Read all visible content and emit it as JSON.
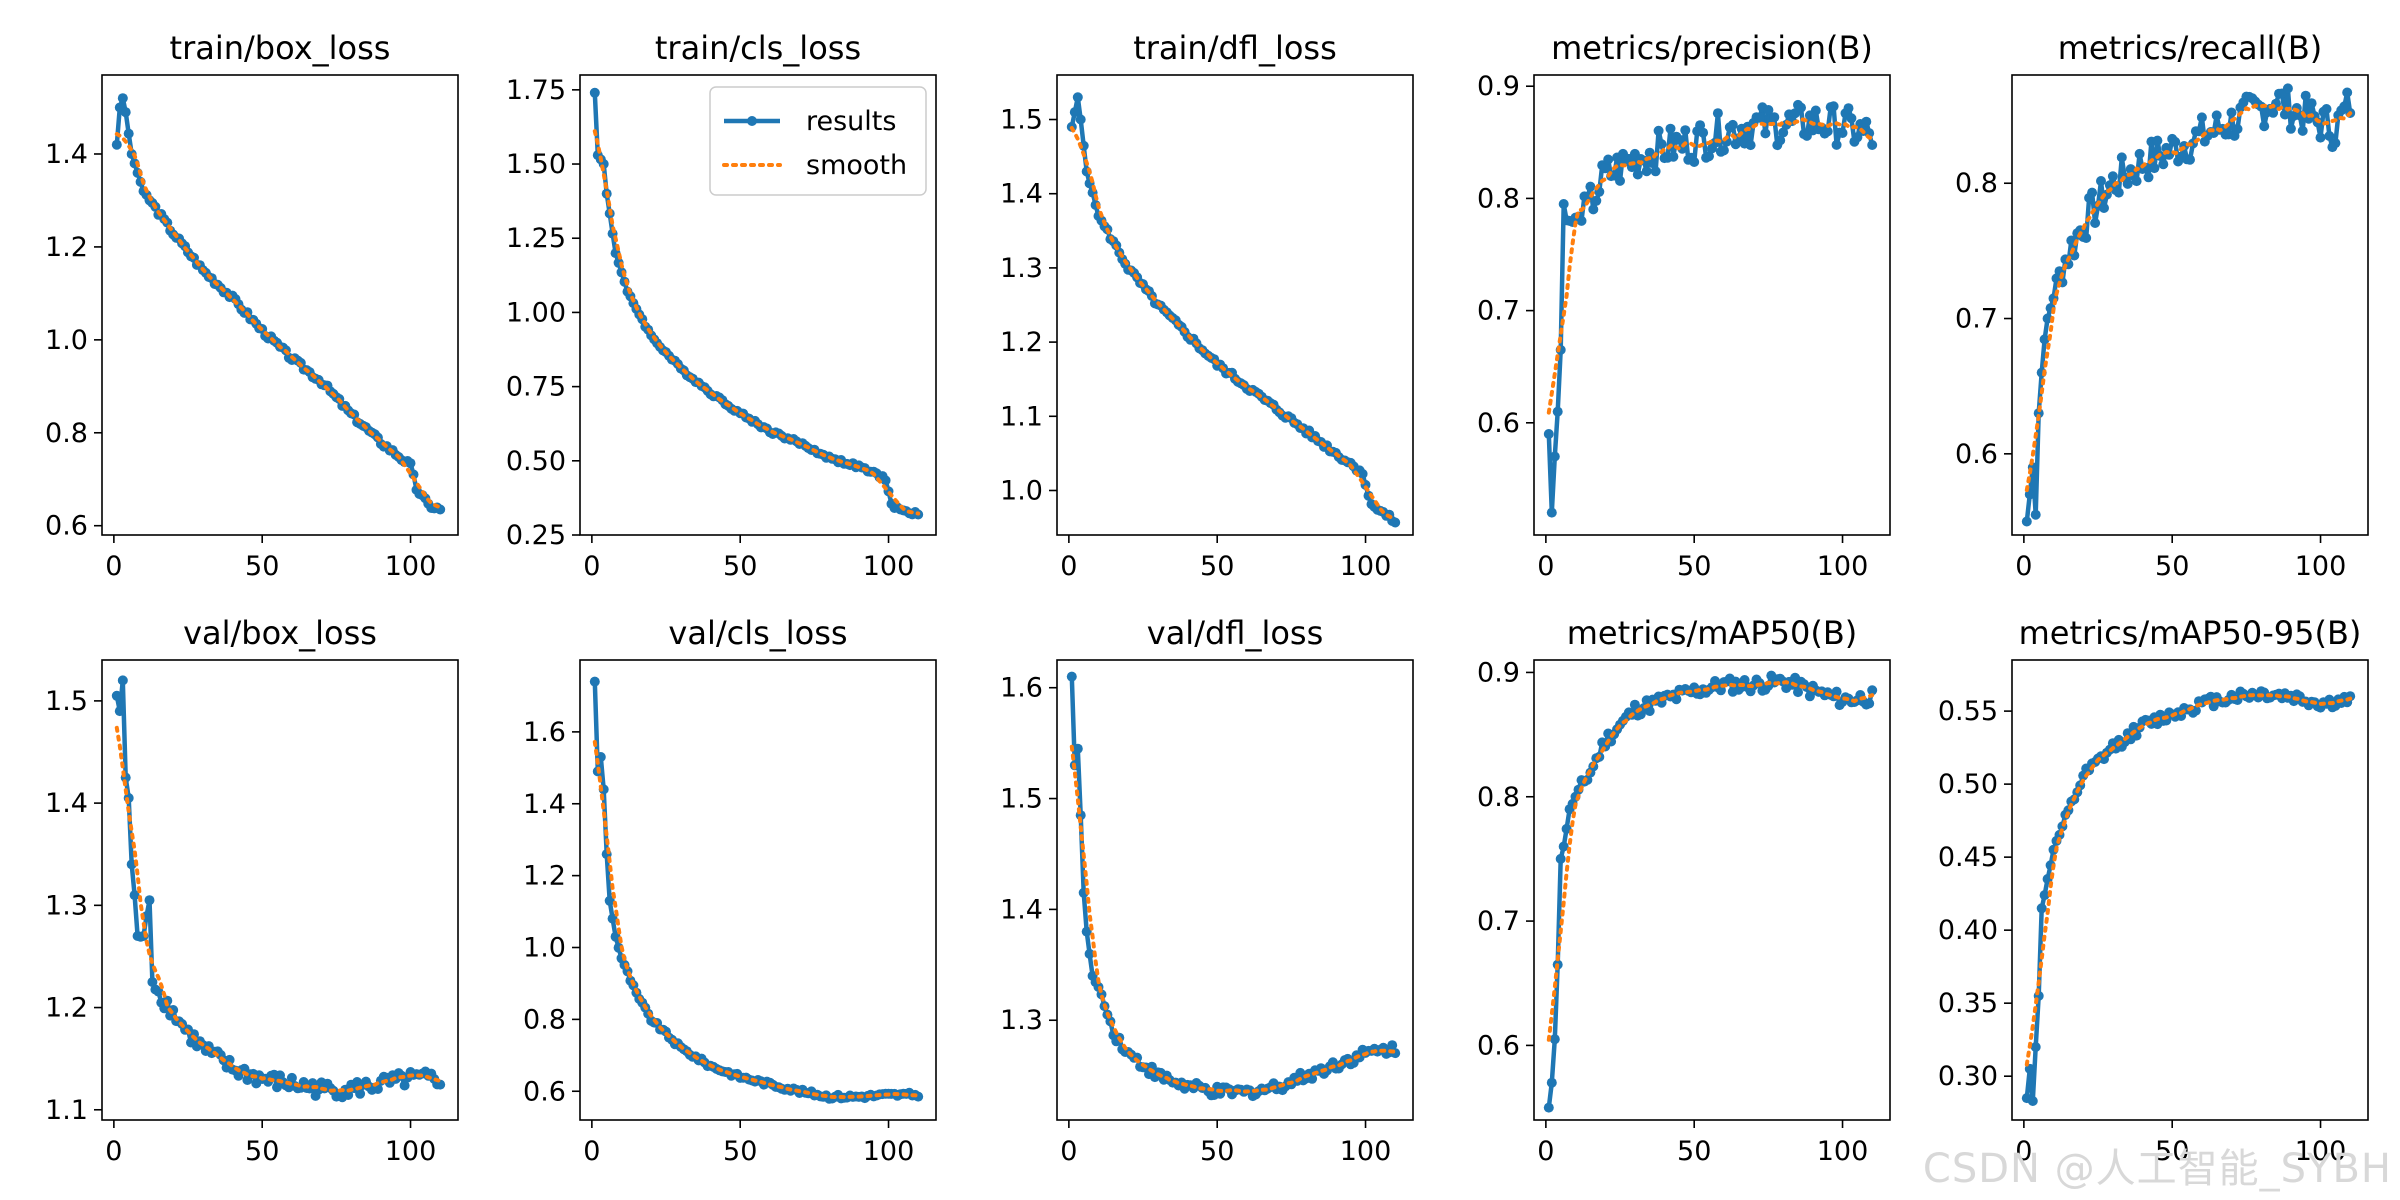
{
  "watermark": "CSDN @人工智能_SYBH",
  "colors": {
    "results": "#1f77b4",
    "smooth": "#ff7f0e",
    "axes": "#000000"
  },
  "legend": {
    "placement": "upper-right",
    "panel": 1,
    "results_label": "results",
    "smooth_label": "smooth"
  },
  "chart_data": [
    {
      "type": "line",
      "title": "train/box_loss",
      "xlim": [
        -4,
        116
      ],
      "ylim": [
        0.58,
        1.57
      ],
      "xticks": [
        0,
        50,
        100
      ],
      "yticks": [
        0.6,
        0.8,
        1.0,
        1.2,
        1.4
      ],
      "ytick_labels": [
        "0.6",
        "0.8",
        "1.0",
        "1.2",
        "1.4"
      ],
      "shape": "decay",
      "y_anchor": [
        [
          1,
          1.42
        ],
        [
          2,
          1.5
        ],
        [
          3,
          1.52
        ],
        [
          4,
          1.49
        ],
        [
          6,
          1.4
        ],
        [
          10,
          1.32
        ],
        [
          20,
          1.23
        ],
        [
          30,
          1.15
        ],
        [
          40,
          1.09
        ],
        [
          50,
          1.02
        ],
        [
          60,
          0.96
        ],
        [
          70,
          0.91
        ],
        [
          80,
          0.84
        ],
        [
          90,
          0.78
        ],
        [
          98,
          0.74
        ],
        [
          100,
          0.73
        ],
        [
          102,
          0.68
        ],
        [
          106,
          0.645
        ],
        [
          110,
          0.635
        ]
      ],
      "noise": 0.006
    },
    {
      "type": "line",
      "title": "train/cls_loss",
      "xlim": [
        -4,
        116
      ],
      "ylim": [
        0.25,
        1.8
      ],
      "xticks": [
        0,
        50,
        100
      ],
      "yticks": [
        0.25,
        0.5,
        0.75,
        1.0,
        1.25,
        1.5,
        1.75
      ],
      "ytick_labels": [
        "0.25",
        "0.50",
        "0.75",
        "1.00",
        "1.25",
        "1.50",
        "1.75"
      ],
      "y_anchor": [
        [
          1,
          1.74
        ],
        [
          2,
          1.53
        ],
        [
          4,
          1.5
        ],
        [
          5,
          1.4
        ],
        [
          8,
          1.2
        ],
        [
          12,
          1.07
        ],
        [
          20,
          0.92
        ],
        [
          30,
          0.81
        ],
        [
          40,
          0.73
        ],
        [
          50,
          0.66
        ],
        [
          60,
          0.6
        ],
        [
          70,
          0.56
        ],
        [
          80,
          0.51
        ],
        [
          90,
          0.48
        ],
        [
          99,
          0.44
        ],
        [
          101,
          0.35
        ],
        [
          105,
          0.33
        ],
        [
          110,
          0.32
        ]
      ],
      "noise": 0.006
    },
    {
      "type": "line",
      "title": "train/dfl_loss",
      "xlim": [
        -4,
        116
      ],
      "ylim": [
        0.94,
        1.56
      ],
      "xticks": [
        0,
        50,
        100
      ],
      "yticks": [
        1.0,
        1.1,
        1.2,
        1.3,
        1.4,
        1.5
      ],
      "ytick_labels": [
        "1.0",
        "1.1",
        "1.2",
        "1.3",
        "1.4",
        "1.5"
      ],
      "y_anchor": [
        [
          1,
          1.49
        ],
        [
          2,
          1.51
        ],
        [
          3,
          1.53
        ],
        [
          4,
          1.5
        ],
        [
          6,
          1.43
        ],
        [
          10,
          1.37
        ],
        [
          20,
          1.3
        ],
        [
          30,
          1.25
        ],
        [
          40,
          1.21
        ],
        [
          50,
          1.17
        ],
        [
          60,
          1.14
        ],
        [
          70,
          1.11
        ],
        [
          80,
          1.08
        ],
        [
          90,
          1.05
        ],
        [
          99,
          1.025
        ],
        [
          101,
          0.99
        ],
        [
          104,
          0.975
        ],
        [
          110,
          0.958
        ]
      ],
      "noise": 0.004
    },
    {
      "type": "line",
      "title": "metrics/precision(B)",
      "xlim": [
        -4,
        116
      ],
      "ylim": [
        0.5,
        0.91
      ],
      "xticks": [
        0,
        50,
        100
      ],
      "yticks": [
        0.6,
        0.7,
        0.8,
        0.9
      ],
      "ytick_labels": [
        "0.6",
        "0.7",
        "0.8",
        "0.9"
      ],
      "y_anchor": [
        [
          1,
          0.59
        ],
        [
          2,
          0.52
        ],
        [
          3,
          0.57
        ],
        [
          4,
          0.61
        ],
        [
          5,
          0.665
        ],
        [
          6,
          0.795
        ],
        [
          8,
          0.78
        ],
        [
          12,
          0.78
        ],
        [
          20,
          0.82
        ],
        [
          30,
          0.835
        ],
        [
          40,
          0.845
        ],
        [
          50,
          0.85
        ],
        [
          60,
          0.86
        ],
        [
          70,
          0.865
        ],
        [
          80,
          0.865
        ],
        [
          90,
          0.868
        ],
        [
          100,
          0.865
        ],
        [
          110,
          0.855
        ]
      ],
      "noise": 0.018
    },
    {
      "type": "line",
      "title": "metrics/recall(B)",
      "xlim": [
        -4,
        116
      ],
      "ylim": [
        0.54,
        0.88
      ],
      "xticks": [
        0,
        50,
        100
      ],
      "yticks": [
        0.6,
        0.7,
        0.8
      ],
      "ytick_labels": [
        "0.6",
        "0.7",
        "0.8"
      ],
      "y_anchor": [
        [
          1,
          0.55
        ],
        [
          2,
          0.57
        ],
        [
          3,
          0.59
        ],
        [
          4,
          0.555
        ],
        [
          5,
          0.63
        ],
        [
          6,
          0.66
        ],
        [
          8,
          0.7
        ],
        [
          12,
          0.735
        ],
        [
          20,
          0.77
        ],
        [
          30,
          0.8
        ],
        [
          40,
          0.815
        ],
        [
          50,
          0.825
        ],
        [
          60,
          0.835
        ],
        [
          70,
          0.845
        ],
        [
          80,
          0.855
        ],
        [
          85,
          0.862
        ],
        [
          90,
          0.855
        ],
        [
          100,
          0.845
        ],
        [
          105,
          0.84
        ],
        [
          110,
          0.86
        ]
      ],
      "noise": 0.015
    },
    {
      "type": "line",
      "title": "val/box_loss",
      "xlim": [
        -4,
        116
      ],
      "ylim": [
        1.09,
        1.54
      ],
      "xticks": [
        0,
        50,
        100
      ],
      "yticks": [
        1.1,
        1.2,
        1.3,
        1.4,
        1.5
      ],
      "ytick_labels": [
        "1.1",
        "1.2",
        "1.3",
        "1.4",
        "1.5"
      ],
      "y_anchor": [
        [
          1,
          1.505
        ],
        [
          2,
          1.49
        ],
        [
          3,
          1.52
        ],
        [
          4,
          1.425
        ],
        [
          5,
          1.405
        ],
        [
          6,
          1.34
        ],
        [
          7,
          1.31
        ],
        [
          8,
          1.27
        ],
        [
          10,
          1.27
        ],
        [
          12,
          1.305
        ],
        [
          13,
          1.23
        ],
        [
          15,
          1.215
        ],
        [
          20,
          1.195
        ],
        [
          25,
          1.175
        ],
        [
          30,
          1.16
        ],
        [
          40,
          1.14
        ],
        [
          50,
          1.13
        ],
        [
          60,
          1.125
        ],
        [
          70,
          1.12
        ],
        [
          80,
          1.12
        ],
        [
          90,
          1.125
        ],
        [
          100,
          1.13
        ],
        [
          110,
          1.13
        ]
      ],
      "noise": 0.008
    },
    {
      "type": "line",
      "title": "val/cls_loss",
      "xlim": [
        -4,
        116
      ],
      "ylim": [
        0.52,
        1.8
      ],
      "xticks": [
        0,
        50,
        100
      ],
      "yticks": [
        0.6,
        0.8,
        1.0,
        1.2,
        1.4,
        1.6
      ],
      "ytick_labels": [
        "0.6",
        "0.8",
        "1.0",
        "1.2",
        "1.4",
        "1.6"
      ],
      "y_anchor": [
        [
          1,
          1.74
        ],
        [
          2,
          1.49
        ],
        [
          3,
          1.53
        ],
        [
          4,
          1.44
        ],
        [
          5,
          1.26
        ],
        [
          6,
          1.13
        ],
        [
          8,
          1.03
        ],
        [
          10,
          0.97
        ],
        [
          15,
          0.87
        ],
        [
          20,
          0.8
        ],
        [
          30,
          0.72
        ],
        [
          40,
          0.67
        ],
        [
          50,
          0.64
        ],
        [
          60,
          0.62
        ],
        [
          70,
          0.6
        ],
        [
          80,
          0.585
        ],
        [
          90,
          0.585
        ],
        [
          100,
          0.59
        ],
        [
          110,
          0.59
        ]
      ],
      "noise": 0.006
    },
    {
      "type": "line",
      "title": "val/dfl_loss",
      "xlim": [
        -4,
        116
      ],
      "ylim": [
        1.21,
        1.625
      ],
      "xticks": [
        0,
        50,
        100
      ],
      "yticks": [
        1.3,
        1.4,
        1.5,
        1.6
      ],
      "ytick_labels": [
        "1.3",
        "1.4",
        "1.5",
        "1.6"
      ],
      "y_anchor": [
        [
          1,
          1.61
        ],
        [
          2,
          1.53
        ],
        [
          3,
          1.545
        ],
        [
          4,
          1.485
        ],
        [
          5,
          1.415
        ],
        [
          6,
          1.38
        ],
        [
          8,
          1.34
        ],
        [
          10,
          1.33
        ],
        [
          15,
          1.29
        ],
        [
          20,
          1.27
        ],
        [
          30,
          1.25
        ],
        [
          40,
          1.24
        ],
        [
          50,
          1.235
        ],
        [
          60,
          1.235
        ],
        [
          70,
          1.24
        ],
        [
          80,
          1.25
        ],
        [
          90,
          1.26
        ],
        [
          100,
          1.27
        ],
        [
          110,
          1.275
        ]
      ],
      "noise": 0.005
    },
    {
      "type": "line",
      "title": "metrics/mAP50(B)",
      "xlim": [
        -4,
        116
      ],
      "ylim": [
        0.54,
        0.91
      ],
      "xticks": [
        0,
        50,
        100
      ],
      "yticks": [
        0.6,
        0.7,
        0.8,
        0.9
      ],
      "ytick_labels": [
        "0.6",
        "0.7",
        "0.8",
        "0.9"
      ],
      "y_anchor": [
        [
          1,
          0.55
        ],
        [
          2,
          0.57
        ],
        [
          3,
          0.605
        ],
        [
          4,
          0.665
        ],
        [
          5,
          0.75
        ],
        [
          6,
          0.76
        ],
        [
          8,
          0.79
        ],
        [
          10,
          0.8
        ],
        [
          15,
          0.82
        ],
        [
          20,
          0.845
        ],
        [
          30,
          0.87
        ],
        [
          40,
          0.878
        ],
        [
          50,
          0.885
        ],
        [
          60,
          0.89
        ],
        [
          70,
          0.89
        ],
        [
          80,
          0.893
        ],
        [
          90,
          0.885
        ],
        [
          100,
          0.878
        ],
        [
          110,
          0.88
        ]
      ],
      "noise": 0.006
    },
    {
      "type": "line",
      "title": "metrics/mAP50-95(B)",
      "xlim": [
        -4,
        116
      ],
      "ylim": [
        0.27,
        0.585
      ],
      "xticks": [
        0,
        50,
        100
      ],
      "yticks": [
        0.3,
        0.35,
        0.4,
        0.45,
        0.5,
        0.55
      ],
      "ytick_labels": [
        "0.30",
        "0.35",
        "0.40",
        "0.45",
        "0.50",
        "0.55"
      ],
      "y_anchor": [
        [
          1,
          0.285
        ],
        [
          2,
          0.305
        ],
        [
          3,
          0.283
        ],
        [
          4,
          0.32
        ],
        [
          5,
          0.355
        ],
        [
          6,
          0.415
        ],
        [
          8,
          0.435
        ],
        [
          10,
          0.455
        ],
        [
          15,
          0.48
        ],
        [
          20,
          0.505
        ],
        [
          30,
          0.525
        ],
        [
          40,
          0.54
        ],
        [
          50,
          0.548
        ],
        [
          60,
          0.555
        ],
        [
          70,
          0.56
        ],
        [
          80,
          0.562
        ],
        [
          90,
          0.56
        ],
        [
          100,
          0.555
        ],
        [
          110,
          0.557
        ]
      ],
      "noise": 0.004
    }
  ]
}
